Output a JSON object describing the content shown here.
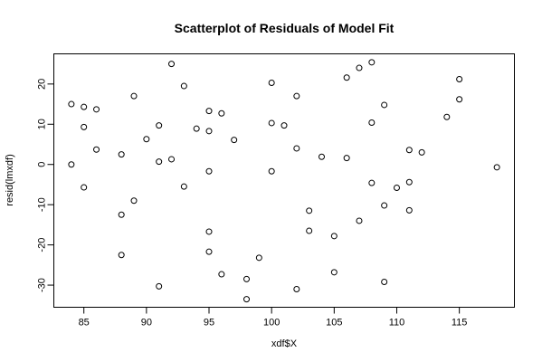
{
  "chart_data": {
    "type": "scatter",
    "title": "Scatterplot of Residuals of Model Fit",
    "xlabel": "xdf$X",
    "ylabel": "resid(lmxdf)",
    "xlim": [
      82.6,
      119.4
    ],
    "ylim": [
      -35.5,
      27.5
    ],
    "xticks": [
      85,
      90,
      95,
      100,
      105,
      110,
      115
    ],
    "yticks": [
      -30,
      -20,
      -10,
      0,
      10,
      20
    ],
    "grid": false,
    "points": [
      [
        84,
        15
      ],
      [
        84,
        0
      ],
      [
        85,
        14.3
      ],
      [
        85,
        9.3
      ],
      [
        85,
        -5.7
      ],
      [
        86,
        13.7
      ],
      [
        86,
        3.7
      ],
      [
        88,
        2.5
      ],
      [
        88,
        -12.5
      ],
      [
        88,
        -22.5
      ],
      [
        89,
        17
      ],
      [
        89,
        -9
      ],
      [
        90,
        6.3
      ],
      [
        91,
        9.7
      ],
      [
        91,
        0.7
      ],
      [
        91,
        -30.3
      ],
      [
        92,
        25
      ],
      [
        92,
        1.3
      ],
      [
        93,
        19.5
      ],
      [
        93,
        -5.5
      ],
      [
        94,
        8.9
      ],
      [
        95,
        13.3
      ],
      [
        95,
        8.3
      ],
      [
        95,
        -1.7
      ],
      [
        95,
        -16.7
      ],
      [
        95,
        -21.7
      ],
      [
        96,
        12.7
      ],
      [
        96,
        -27.3
      ],
      [
        97,
        6.1
      ],
      [
        98,
        -28.5
      ],
      [
        98,
        -33.5
      ],
      [
        99,
        -23.2
      ],
      [
        100,
        20.3
      ],
      [
        100,
        10.3
      ],
      [
        100,
        -1.7
      ],
      [
        101,
        9.7
      ],
      [
        102,
        17
      ],
      [
        102,
        4
      ],
      [
        102,
        -31
      ],
      [
        103,
        -11.5
      ],
      [
        103,
        -16.5
      ],
      [
        104,
        1.9
      ],
      [
        105,
        -17.8
      ],
      [
        105,
        -26.8
      ],
      [
        106,
        21.6
      ],
      [
        106,
        1.6
      ],
      [
        107,
        24
      ],
      [
        107,
        -14
      ],
      [
        108,
        25.4
      ],
      [
        108,
        10.4
      ],
      [
        108,
        -4.6
      ],
      [
        109,
        14.8
      ],
      [
        109,
        -10.2
      ],
      [
        109,
        -29.2
      ],
      [
        110,
        -5.8
      ],
      [
        111,
        3.6
      ],
      [
        111,
        -4.4
      ],
      [
        111,
        -11.4
      ],
      [
        112,
        3
      ],
      [
        114,
        11.8
      ],
      [
        115,
        21.2
      ],
      [
        115,
        16.2
      ],
      [
        118,
        -0.7
      ]
    ]
  }
}
